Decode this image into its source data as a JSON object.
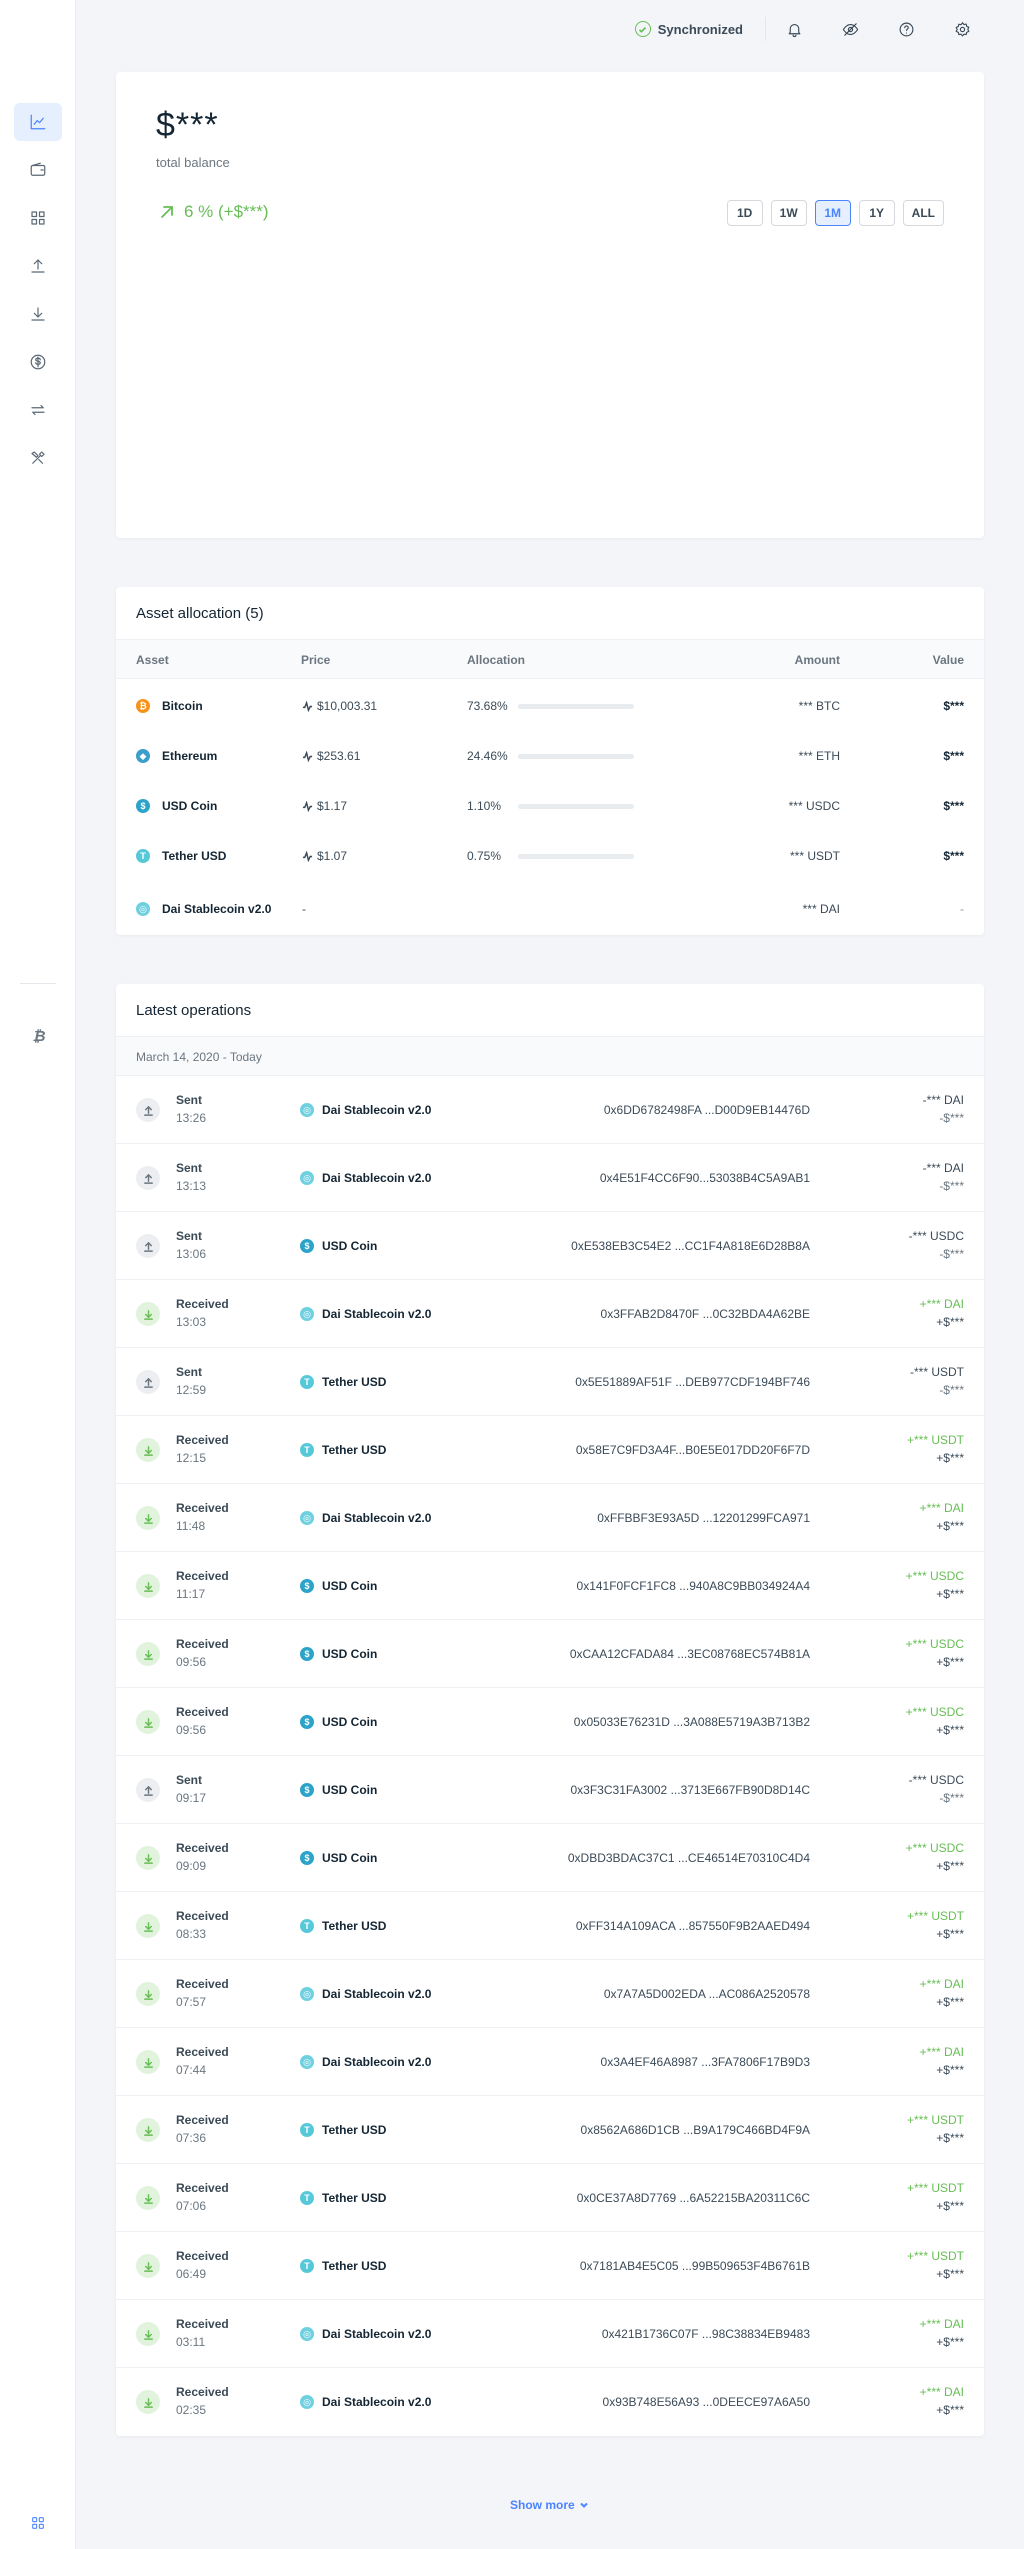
{
  "topbar": {
    "sync_label": "Synchronized"
  },
  "colors": {
    "accent": "#4b84ff",
    "positive": "#66be54",
    "btc": "#f7931a",
    "eth": "#3c9ecb",
    "usdc": "#2ca4c9",
    "usdt": "#57c8d8",
    "dai": "#6fd0e0"
  },
  "icons": {
    "sidebar": [
      "chart-icon",
      "wallet-icon",
      "grid-icon",
      "upload-icon",
      "download-icon",
      "dollar-icon",
      "swap-icon",
      "tools-icon",
      "bitcoin-icon",
      "apps-icon"
    ],
    "topbar": [
      "check-circle-icon",
      "bell-icon",
      "eye-off-icon",
      "help-icon",
      "gear-icon"
    ]
  },
  "balance": {
    "amount": "$***",
    "label": "total balance",
    "growth": "6 % (+$***)",
    "ranges": [
      "1D",
      "1W",
      "1M",
      "1Y",
      "ALL"
    ],
    "active_range": "1M"
  },
  "allocation": {
    "title": "Asset allocation (5)",
    "headers": {
      "asset": "Asset",
      "price": "Price",
      "allocation": "Allocation",
      "amount": "Amount",
      "value": "Value"
    },
    "rows": [
      {
        "asset": "Bitcoin",
        "icon": "B",
        "price": "$10,003.31",
        "allocation": "73.68%",
        "allocation_value": 73.68,
        "amount": "*** BTC",
        "value": "$***"
      },
      {
        "asset": "Ethereum",
        "icon": "E",
        "price": "$253.61",
        "allocation": "24.46%",
        "allocation_value": 24.46,
        "amount": "*** ETH",
        "value": "$***"
      },
      {
        "asset": "USD Coin",
        "icon": "U",
        "price": "$1.17",
        "allocation": "1.10%",
        "allocation_value": 1.1,
        "amount": "*** USDC",
        "value": "$***"
      },
      {
        "asset": "Tether USD",
        "icon": "T",
        "price": "$1.07",
        "allocation": "0.75%",
        "allocation_value": 0.75,
        "amount": "*** USDT",
        "value": "$***"
      },
      {
        "asset": "Dai Stablecoin v2.0",
        "icon": "D",
        "price": "-",
        "allocation": "",
        "allocation_value": 0,
        "amount": "*** DAI",
        "value": "-"
      }
    ]
  },
  "operations": {
    "title": "Latest operations",
    "date_range": "March 14, 2020 - Today",
    "rows": [
      {
        "type": "Sent",
        "time": "13:26",
        "coin": "Dai Stablecoin v2.0",
        "addr": "0x6DD6782498FA ...D00D9EB14476D",
        "amount": "-*** DAI",
        "value": "-$***"
      },
      {
        "type": "Sent",
        "time": "13:13",
        "coin": "Dai Stablecoin v2.0",
        "addr": "0x4E51F4CC6F90...53038B4C5A9AB1",
        "amount": "-*** DAI",
        "value": "-$***"
      },
      {
        "type": "Sent",
        "time": "13:06",
        "coin": "USD Coin",
        "addr": "0xE538EB3C54E2 ...CC1F4A818E6D28B8A",
        "amount": "-*** USDC",
        "value": "-$***"
      },
      {
        "type": "Received",
        "time": "13:03",
        "coin": "Dai Stablecoin v2.0",
        "addr": "0x3FFAB2D8470F ...0C32BDA4A62BE",
        "amount": "+*** DAI",
        "value": "+$***"
      },
      {
        "type": "Sent",
        "time": "12:59",
        "coin": "Tether USD",
        "addr": "0x5E51889AF51F ...DEB977CDF194BF746",
        "amount": "-*** USDT",
        "value": "-$***"
      },
      {
        "type": "Received",
        "time": "12:15",
        "coin": "Tether USD",
        "addr": "0x58E7C9FD3A4F...B0E5E017DD20F6F7D",
        "amount": "+*** USDT",
        "value": "+$***"
      },
      {
        "type": "Received",
        "time": "11:48",
        "coin": "Dai Stablecoin v2.0",
        "addr": "0xFFBBF3E93A5D ...12201299FCA971",
        "amount": "+*** DAI",
        "value": "+$***"
      },
      {
        "type": "Received",
        "time": "11:17",
        "coin": "USD Coin",
        "addr": "0x141F0FCF1FC8 ...940A8C9BB034924A4",
        "amount": "+*** USDC",
        "value": "+$***"
      },
      {
        "type": "Received",
        "time": "09:56",
        "coin": "USD Coin",
        "addr": "0xCAA12CFADA84 ...3EC08768EC574B81A",
        "amount": "+*** USDC",
        "value": "+$***"
      },
      {
        "type": "Received",
        "time": "09:56",
        "coin": "USD Coin",
        "addr": "0x05033E76231D ...3A088E5719A3B713B2",
        "amount": "+*** USDC",
        "value": "+$***"
      },
      {
        "type": "Sent",
        "time": "09:17",
        "coin": "USD Coin",
        "addr": "0x3F3C31FA3002 ...3713E667FB90D8D14C",
        "amount": "-*** USDC",
        "value": "-$***"
      },
      {
        "type": "Received",
        "time": "09:09",
        "coin": "USD Coin",
        "addr": "0xDBD3BDAC37C1 ...CE46514E70310C4D4",
        "amount": "+*** USDC",
        "value": "+$***"
      },
      {
        "type": "Received",
        "time": "08:33",
        "coin": "Tether USD",
        "addr": "0xFF314A109ACA ...857550F9B2AAED494",
        "amount": "+*** USDT",
        "value": "+$***"
      },
      {
        "type": "Received",
        "time": "07:57",
        "coin": "Dai Stablecoin v2.0",
        "addr": "0x7A7A5D002EDA ...AC086A2520578",
        "amount": "+*** DAI",
        "value": "+$***"
      },
      {
        "type": "Received",
        "time": "07:44",
        "coin": "Dai Stablecoin v2.0",
        "addr": "0x3A4EF46A8987 ...3FA7806F17B9D3",
        "amount": "+*** DAI",
        "value": "+$***"
      },
      {
        "type": "Received",
        "time": "07:36",
        "coin": "Tether USD",
        "addr": "0x8562A686D1CB ...B9A179C466BD4F9A",
        "amount": "+*** USDT",
        "value": "+$***"
      },
      {
        "type": "Received",
        "time": "07:06",
        "coin": "Tether USD",
        "addr": "0x0CE37A8D7769 ...6A52215BA20311C6C",
        "amount": "+*** USDT",
        "value": "+$***"
      },
      {
        "type": "Received",
        "time": "06:49",
        "coin": "Tether USD",
        "addr": "0x7181AB4E5C05 ...99B509653F4B6761B",
        "amount": "+*** USDT",
        "value": "+$***"
      },
      {
        "type": "Received",
        "time": "03:11",
        "coin": "Dai Stablecoin v2.0",
        "addr": "0x421B1736C07F ...98C38834EB9483",
        "amount": "+*** DAI",
        "value": "+$***"
      },
      {
        "type": "Received",
        "time": "02:35",
        "coin": "Dai Stablecoin v2.0",
        "addr": "0x93B748E56A93 ...0DEECE97A6A50",
        "amount": "+*** DAI",
        "value": "+$***"
      }
    ]
  },
  "show_more": "Show more"
}
